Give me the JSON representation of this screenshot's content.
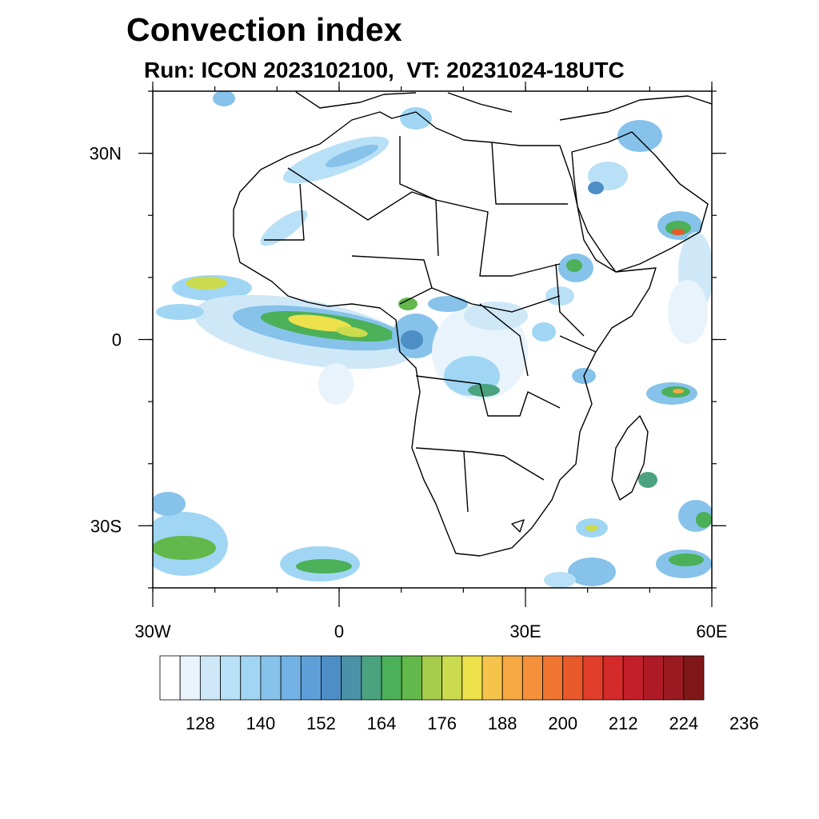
{
  "title": "Convection index",
  "subtitle": "Run: ICON 2023102100,  VT: 20231024-18UTC",
  "map": {
    "lon_range": [
      -30,
      60
    ],
    "lat_range": [
      -40,
      40
    ],
    "lat_ticks": [
      {
        "value": 30,
        "label": "30N"
      },
      {
        "value": 0,
        "label": "0"
      },
      {
        "value": -30,
        "label": "30S"
      }
    ],
    "lon_ticks": [
      {
        "value": -30,
        "label": "30W"
      },
      {
        "value": 0,
        "label": "0"
      },
      {
        "value": 30,
        "label": "30E"
      },
      {
        "value": 60,
        "label": "60E"
      }
    ],
    "minor_lon_step": 10,
    "minor_lat_step": 10,
    "land_outline_color": "#000000"
  },
  "colorbar": {
    "orientation": "horizontal",
    "colors": [
      "#ffffff",
      "#e8f3fb",
      "#cfe8f8",
      "#b8e0f6",
      "#a0d6f4",
      "#86c2ea",
      "#73b2e4",
      "#5f9fd9",
      "#4e8ec6",
      "#4b92a8",
      "#4ba27f",
      "#4bb058",
      "#62b84a",
      "#a5cc4b",
      "#cadb4e",
      "#ede14c",
      "#f6c44a",
      "#f6a842",
      "#f4913a",
      "#f07531",
      "#e8592b",
      "#e03d2b",
      "#d42a2a",
      "#c21f2a",
      "#ae1a26",
      "#991a21",
      "#7f1718"
    ],
    "labels": [
      "128",
      "140",
      "152",
      "164",
      "176",
      "188",
      "200",
      "212",
      "224",
      "236"
    ]
  }
}
